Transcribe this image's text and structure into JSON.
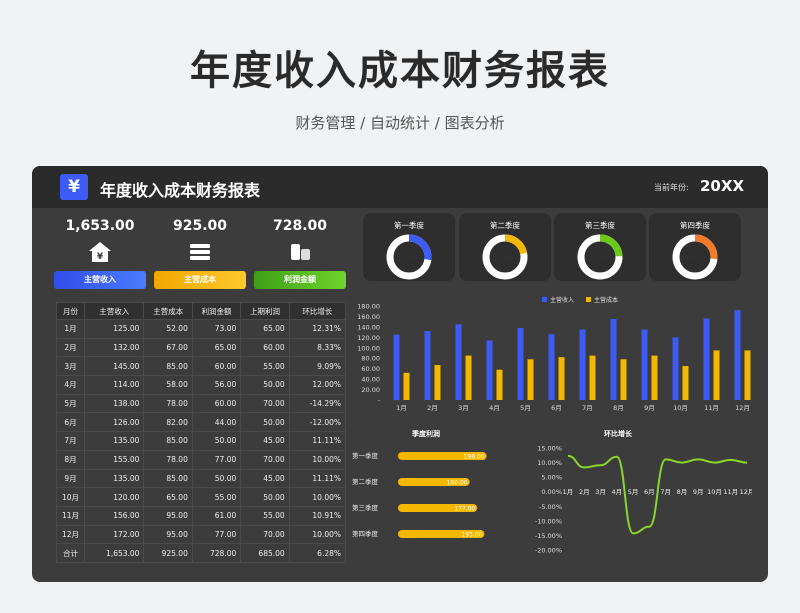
{
  "hero": {
    "title": "年度收入成本财务报表",
    "subtitle": "财务管理 / 自动统计 / 图表分析"
  },
  "panel": {
    "logo": "¥",
    "title": "年度收入成本财务报表",
    "year_label": "当前年份:",
    "year_value": "20XX"
  },
  "kpis": [
    {
      "value": "1,653.00",
      "label": "主营收入",
      "color": "#3d5cf5",
      "icon": "house-yen-icon"
    },
    {
      "value": "925.00",
      "label": "主营成本",
      "color": "#f5b800",
      "icon": "stack-icon"
    },
    {
      "value": "728.00",
      "label": "利润金额",
      "color": "#4caf20",
      "icon": "coins-icon"
    }
  ],
  "table": {
    "headers": [
      "月份",
      "主营收入",
      "主营成本",
      "利润金额",
      "上期利润",
      "环比增长"
    ],
    "rows": [
      [
        "1月",
        "125.00",
        "52.00",
        "73.00",
        "65.00",
        "12.31%"
      ],
      [
        "2月",
        "132.00",
        "67.00",
        "65.00",
        "60.00",
        "8.33%"
      ],
      [
        "3月",
        "145.00",
        "85.00",
        "60.00",
        "55.00",
        "9.09%"
      ],
      [
        "4月",
        "114.00",
        "58.00",
        "56.00",
        "50.00",
        "12.00%"
      ],
      [
        "5月",
        "138.00",
        "78.00",
        "60.00",
        "70.00",
        "-14.29%"
      ],
      [
        "6月",
        "126.00",
        "82.00",
        "44.00",
        "50.00",
        "-12.00%"
      ],
      [
        "7月",
        "135.00",
        "85.00",
        "50.00",
        "45.00",
        "11.11%"
      ],
      [
        "8月",
        "155.00",
        "78.00",
        "77.00",
        "70.00",
        "10.00%"
      ],
      [
        "9月",
        "135.00",
        "85.00",
        "50.00",
        "45.00",
        "11.11%"
      ],
      [
        "10月",
        "120.00",
        "65.00",
        "55.00",
        "50.00",
        "10.00%"
      ],
      [
        "11月",
        "156.00",
        "95.00",
        "61.00",
        "55.00",
        "10.91%"
      ],
      [
        "12月",
        "172.00",
        "95.00",
        "77.00",
        "70.00",
        "10.00%"
      ],
      [
        "合计",
        "1,653.00",
        "925.00",
        "728.00",
        "685.00",
        "6.28%"
      ]
    ]
  },
  "quarters": [
    {
      "label": "第一季度",
      "pct": "27.20%",
      "value": 0.272,
      "color": "#3d5cf5"
    },
    {
      "label": "第二季度",
      "pct": "21.98%",
      "value": 0.2198,
      "color": "#f5b800"
    },
    {
      "label": "第三季度",
      "pct": "24.31%",
      "value": 0.2431,
      "color": "#6cc91c"
    },
    {
      "label": "第四季度",
      "pct": "26.51%",
      "value": 0.2651,
      "color": "#f07c2a"
    }
  ],
  "chart_data": [
    {
      "type": "bar",
      "categories": [
        "1月",
        "2月",
        "3月",
        "4月",
        "5月",
        "6月",
        "7月",
        "8月",
        "9月",
        "10月",
        "11月",
        "12月"
      ],
      "series": [
        {
          "name": "主营收入",
          "color": "#3d5cf5",
          "values": [
            125,
            132,
            145,
            114,
            138,
            126,
            135,
            155,
            135,
            120,
            156,
            172
          ]
        },
        {
          "name": "主营成本",
          "color": "#f5b800",
          "values": [
            52,
            67,
            85,
            58,
            78,
            82,
            85,
            78,
            85,
            65,
            95,
            95
          ]
        }
      ],
      "y_ticks": [
        "180.00",
        "160.00",
        "140.00",
        "120.00",
        "100.00",
        "80.00",
        "60.00",
        "40.00",
        "20.00",
        "-"
      ],
      "ylim": [
        0,
        180
      ],
      "legend": "top"
    },
    {
      "type": "bar",
      "orientation": "horizontal",
      "title": "季度利润",
      "categories": [
        "第一季度",
        "第二季度",
        "第三季度",
        "第四季度"
      ],
      "values": [
        198,
        160,
        177,
        193
      ],
      "value_labels": [
        "198.00",
        "160.00",
        "177.00",
        "193.00"
      ],
      "color": "#f5b800",
      "xlim": [
        0,
        210
      ]
    },
    {
      "type": "line",
      "title": "环比增长",
      "categories": [
        "1月",
        "2月",
        "3月",
        "4月",
        "5月",
        "6月",
        "7月",
        "8月",
        "9月",
        "10月",
        "11月",
        "12月"
      ],
      "values": [
        12.31,
        8.33,
        9.09,
        12.0,
        -14.29,
        -12.0,
        11.11,
        10.0,
        11.11,
        10.0,
        10.91,
        10.0
      ],
      "y_ticks": [
        "15.00%",
        "10.00%",
        "5.00%",
        "0.00%",
        "-5.00%",
        "-10.00%",
        "-15.00%",
        "-20.00%"
      ],
      "ylim": [
        -20,
        15
      ],
      "color": "#8bd42a"
    }
  ]
}
